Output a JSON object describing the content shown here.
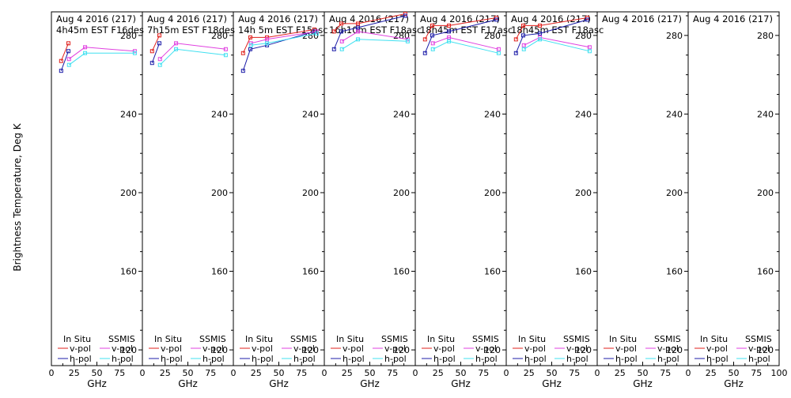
{
  "ylabel": "Brightness Temperature, Deg K",
  "xlabel": "GHz",
  "legend": {
    "left_header": "In Situ",
    "right_header": "SSMIS",
    "v_label": "v-pol",
    "h_label": "h-pol"
  },
  "colors": {
    "insitu_v": "#e0201c",
    "insitu_h": "#1c1ca8",
    "ssmis_v": "#e040e0",
    "ssmis_h": "#40e0f0"
  },
  "chart_data": {
    "type": "line",
    "ylim": [
      112,
      292
    ],
    "xlim": [
      0,
      100
    ],
    "yticks": [
      120,
      160,
      200,
      240,
      280
    ],
    "xticks": [
      0,
      25,
      50,
      75,
      100
    ],
    "xtick_labels_last_panel": [
      "0",
      "25",
      "50",
      "75",
      "100"
    ],
    "xtick_labels_other_panels": [
      "0",
      "25",
      "50",
      "75",
      ""
    ],
    "panels": [
      {
        "title": "Aug 4 2016 (217)",
        "subtitle": "4h45m  EST  F16des",
        "series": [
          {
            "key": "insitu_v",
            "x": [
              10.7,
              18.7
            ],
            "y": [
              267,
              276
            ]
          },
          {
            "key": "insitu_h",
            "x": [
              10.7,
              18.7
            ],
            "y": [
              262,
              272
            ]
          },
          {
            "key": "ssmis_v",
            "x": [
              19.35,
              37,
              91.65
            ],
            "y": [
              268,
              274,
              272
            ]
          },
          {
            "key": "ssmis_h",
            "x": [
              19.35,
              37,
              91.65
            ],
            "y": [
              265,
              271,
              271
            ]
          }
        ]
      },
      {
        "title": "Aug 4 2016 (217)",
        "subtitle": "7h15m  EST  F18des",
        "series": [
          {
            "key": "insitu_v",
            "x": [
              10.7,
              18.7
            ],
            "y": [
              272,
              280
            ]
          },
          {
            "key": "insitu_h",
            "x": [
              10.7,
              18.7
            ],
            "y": [
              266,
              276
            ]
          },
          {
            "key": "ssmis_v",
            "x": [
              19.35,
              37,
              91.65
            ],
            "y": [
              268,
              276,
              273
            ]
          },
          {
            "key": "ssmis_h",
            "x": [
              19.35,
              37,
              91.65
            ],
            "y": [
              265,
              273,
              270
            ]
          }
        ]
      },
      {
        "title": "Aug 4 2016 (217)",
        "subtitle": "14h 5m  EST  F15asc",
        "series": [
          {
            "key": "insitu_v",
            "x": [
              10.7,
              18.7,
              37,
              89
            ],
            "y": [
              271,
              279,
              279,
              283
            ]
          },
          {
            "key": "insitu_h",
            "x": [
              10.7,
              18.7,
              37,
              89
            ],
            "y": [
              262,
              273,
              275,
              282
            ]
          },
          {
            "key": "ssmis_v",
            "x": [
              19.35,
              37,
              91.65
            ],
            "y": [
              276,
              278,
              282
            ]
          },
          {
            "key": "ssmis_h",
            "x": [
              19.35,
              37,
              91.65
            ],
            "y": [
              275,
              276,
              281
            ]
          }
        ]
      },
      {
        "title": "Aug 4 2016 (217)",
        "subtitle": "16h10m  EST  F18asc",
        "series": [
          {
            "key": "insitu_v",
            "x": [
              10.7,
              18.7,
              37,
              89
            ],
            "y": [
              282,
              286,
              286,
              291
            ]
          },
          {
            "key": "insitu_h",
            "x": [
              10.7,
              18.7,
              37,
              89
            ],
            "y": [
              273,
              282,
              284,
              290
            ]
          },
          {
            "key": "ssmis_v",
            "x": [
              19.35,
              37,
              91.65
            ],
            "y": [
              277,
              282,
              278
            ]
          },
          {
            "key": "ssmis_h",
            "x": [
              19.35,
              37,
              91.65
            ],
            "y": [
              273,
              278,
              277
            ]
          }
        ]
      },
      {
        "title": "Aug 4 2016 (217)",
        "subtitle": "18h45m  EST  F17asc",
        "series": [
          {
            "key": "insitu_v",
            "x": [
              10.7,
              18.7,
              37,
              89
            ],
            "y": [
              278,
              285,
              285,
              289
            ]
          },
          {
            "key": "insitu_h",
            "x": [
              10.7,
              18.7,
              37,
              89
            ],
            "y": [
              271,
              280,
              282,
              288
            ]
          },
          {
            "key": "ssmis_v",
            "x": [
              19.35,
              37,
              91.65
            ],
            "y": [
              276,
              279,
              273
            ]
          },
          {
            "key": "ssmis_h",
            "x": [
              19.35,
              37,
              91.65
            ],
            "y": [
              273,
              277,
              271
            ]
          }
        ]
      },
      {
        "title": "Aug 4 2016 (217)",
        "subtitle": "18h45m  EST  F18asc",
        "series": [
          {
            "key": "insitu_v",
            "x": [
              10.7,
              18.7,
              37,
              89
            ],
            "y": [
              278,
              285,
              285,
              289
            ]
          },
          {
            "key": "insitu_h",
            "x": [
              10.7,
              18.7,
              37,
              89
            ],
            "y": [
              271,
              280,
              281,
              288
            ]
          },
          {
            "key": "ssmis_v",
            "x": [
              19.35,
              37,
              91.65
            ],
            "y": [
              275,
              279,
              274
            ]
          },
          {
            "key": "ssmis_h",
            "x": [
              19.35,
              37,
              91.65
            ],
            "y": [
              273,
              278,
              272
            ]
          }
        ]
      },
      {
        "title": "Aug 4 2016 (217)",
        "subtitle": "",
        "series": []
      },
      {
        "title": "Aug 4 2016 (217)",
        "subtitle": "",
        "series": []
      }
    ]
  }
}
